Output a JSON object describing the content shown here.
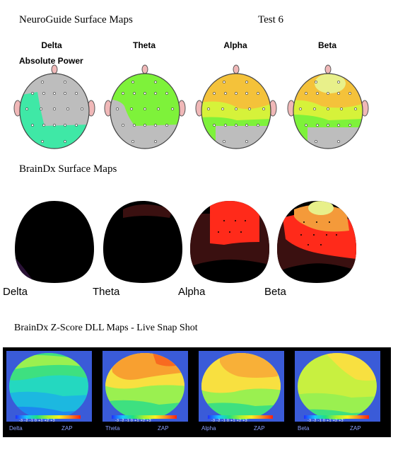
{
  "neuroguide": {
    "title": "NeuroGuide Surface Maps",
    "test_label": "Test 6",
    "power_label": "Absolute Power",
    "bands": [
      "Delta",
      "Theta",
      "Alpha",
      "Beta"
    ]
  },
  "braindx_surface": {
    "title": "BrainDx Surface Maps",
    "bands": [
      "Delta",
      "Theta",
      "Alpha",
      "Beta"
    ]
  },
  "zscore": {
    "title": "BrainDx Z-Score DLL Maps - Live Snap Shot",
    "panels": [
      {
        "band": "Delta",
        "mode": "ZAP"
      },
      {
        "band": "Theta",
        "mode": "ZAP"
      },
      {
        "band": "Alpha",
        "mode": "ZAP"
      },
      {
        "band": "Beta",
        "mode": "ZAP"
      }
    ],
    "scale_ticks": "-3 -2 -1  0 +1 +2 +3"
  },
  "colors": {
    "gray": "#bdbdbd",
    "green": "#7ef23a",
    "cyan": "#3fe8a6",
    "yellow_green": "#d6f23a",
    "orange": "#f4c23a",
    "red": "#ff2a1a",
    "dark_red": "#3a1010",
    "scale_gradient": [
      "#2030ff",
      "#18c8ff",
      "#20e080",
      "#a8f030",
      "#f8f020",
      "#f89020",
      "#ff2010"
    ]
  }
}
